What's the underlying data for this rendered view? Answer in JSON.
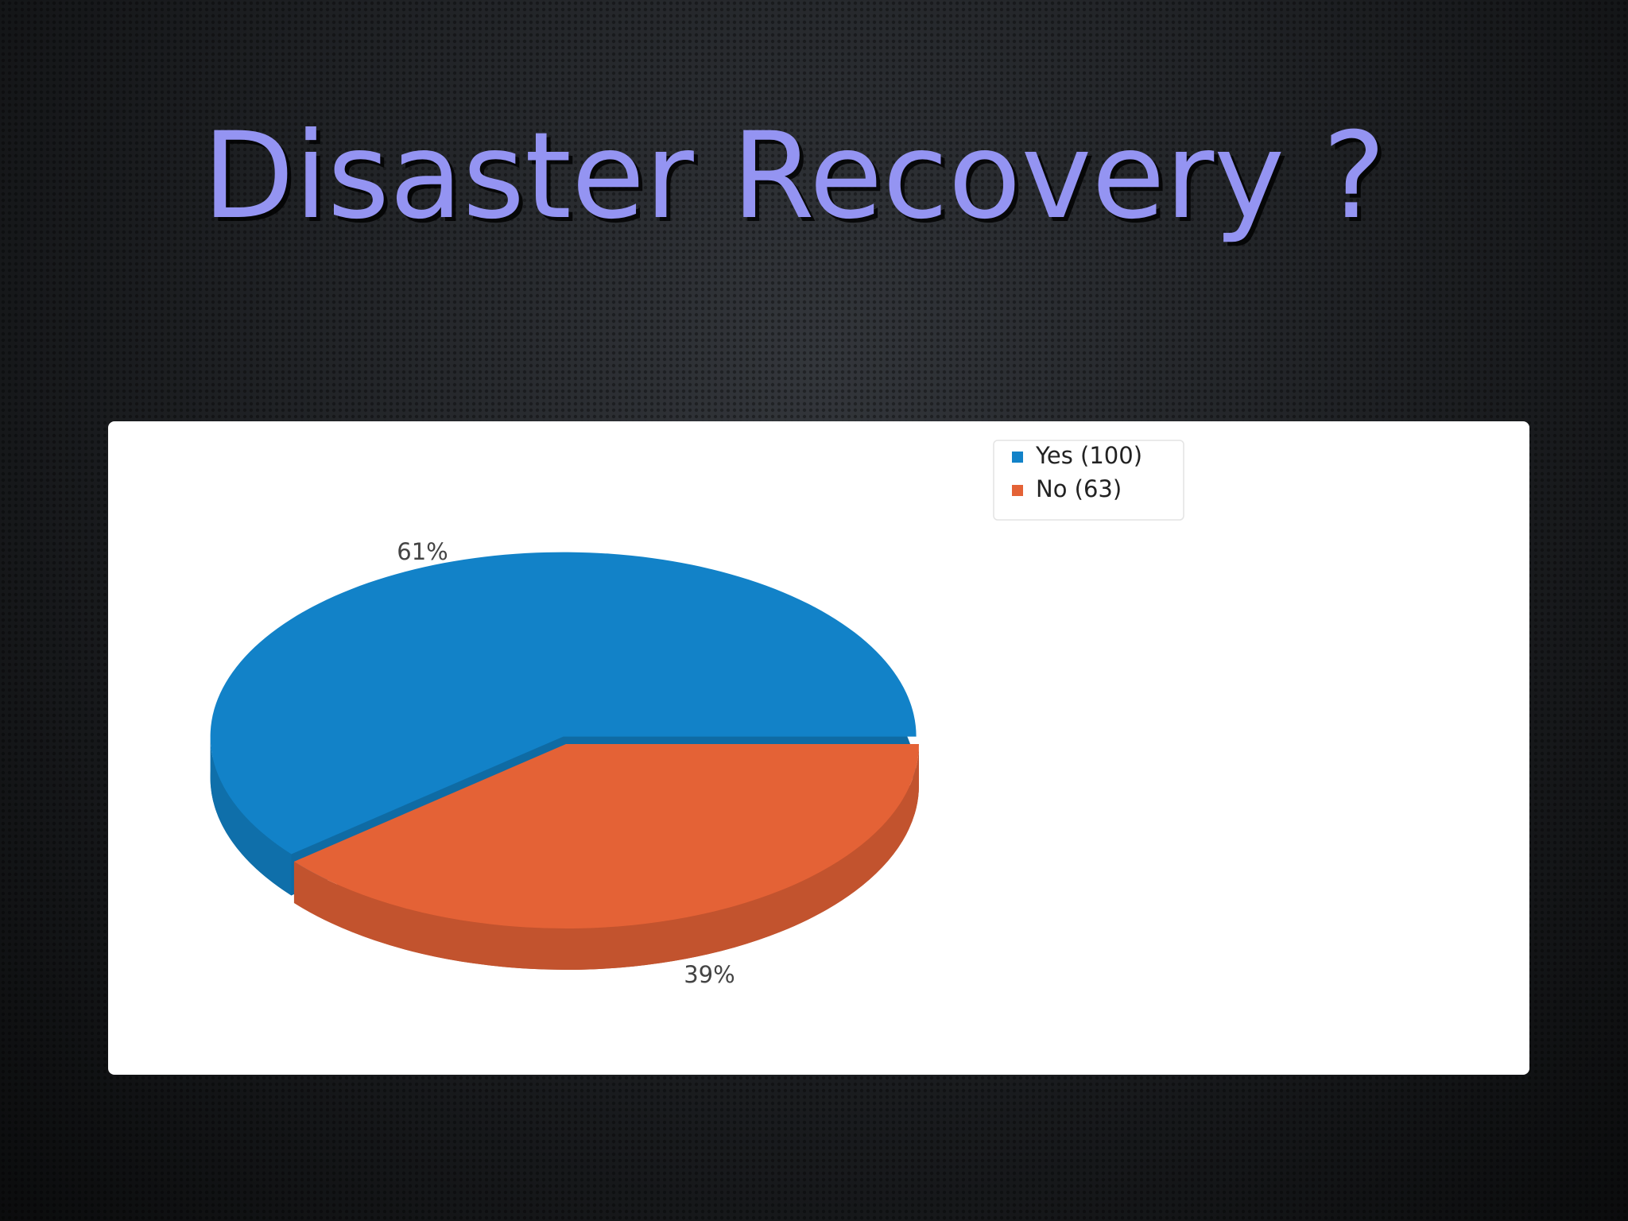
{
  "chart_data": {
    "type": "pie",
    "title": "Disaster Recovery ?",
    "categories": [
      "Yes (100)",
      "No (63)"
    ],
    "values": [
      61,
      39
    ],
    "value_labels": [
      "61%",
      "39%"
    ],
    "colors": [
      "#1282c8",
      "#e46236"
    ],
    "legend": "top-right"
  }
}
